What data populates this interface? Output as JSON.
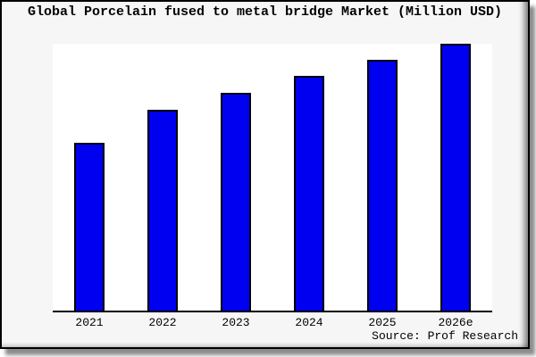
{
  "title": "Global Porcelain fused to metal bridge Market (Million USD)",
  "source_note": "Source: Prof Research",
  "colors": {
    "canvas_background": "#f6f6f6",
    "plot_background": "#ffffff",
    "bar_fill": "#0000f0",
    "bar_border": "#000000",
    "axis_line": "#000000",
    "frame_border": "#000000",
    "shadow": "#8a8a8a"
  },
  "chart_data": {
    "type": "bar",
    "title": "Global Porcelain fused to metal bridge Market (Million USD)",
    "categories": [
      "2021",
      "2022",
      "2023",
      "2024",
      "2025",
      "2026e"
    ],
    "values_pct_of_max": [
      62.9,
      75.3,
      81.6,
      88.0,
      94.0,
      100
    ],
    "values_note": "No y-axis ticks or data labels shown; values are bar heights relative to tallest bar (2026e = 100)",
    "xlabel": "",
    "ylabel": "",
    "y_axis_labels": "none",
    "grid": false,
    "legend": "none",
    "bar_color": "#0000f0",
    "bar_border_color": "#000000",
    "source": "Source: Prof Research"
  }
}
